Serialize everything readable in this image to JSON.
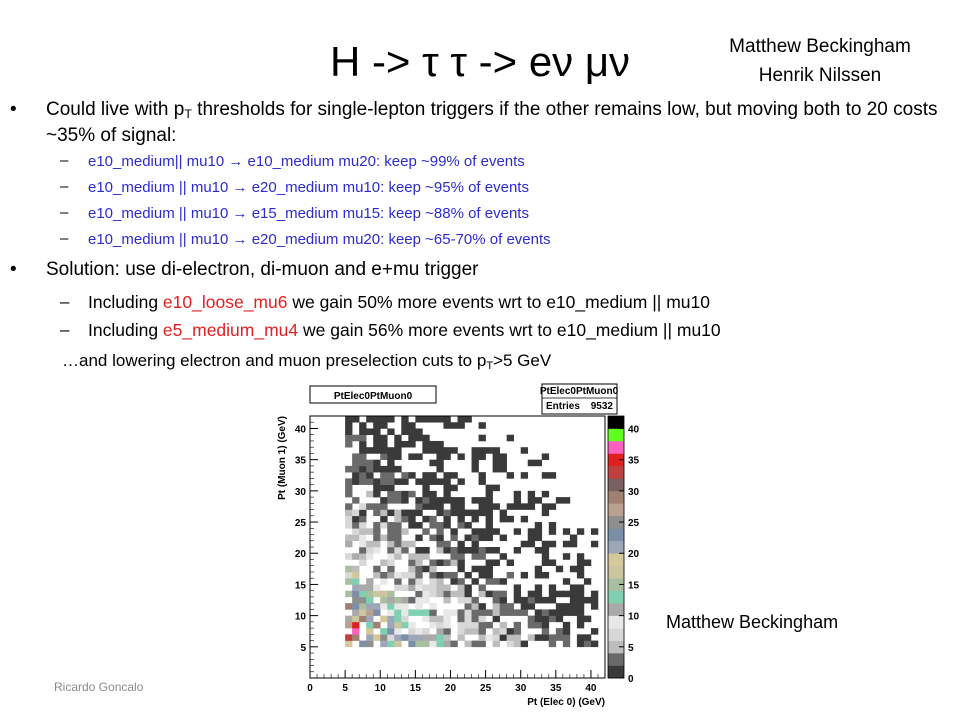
{
  "title": "H -> τ τ -> eν μν",
  "authors": [
    "Matthew Beckingham",
    "Henrik Nilssen"
  ],
  "bullets": [
    {
      "text_a": "Could live with p",
      "sub": "T",
      "text_b": " thresholds for single-lepton triggers if the other remains low, but moving both to 20 costs ~35% of signal:",
      "items": [
        "e10_medium|| mu10 → e10_medium mu20: keep ~99% of events",
        "e10_medium || mu10 → e20_medium mu10: keep ~95% of events",
        "e10_medium || mu10 → e15_medium mu15: keep ~88% of events",
        "e10_medium || mu10 → e20_medium mu20: keep ~65-70% of events"
      ]
    },
    {
      "text": "Solution: use di-electron, di-muon and e+mu trigger",
      "items": [
        {
          "pre": "Including ",
          "hl": "e10_loose_mu6",
          "post": " we gain 50% more events wrt to e10_medium || mu10"
        },
        {
          "pre": "Including  ",
          "hl": "e5_medium_mu4",
          "post": " we gain 56% more events wrt to e10_medium || mu10"
        }
      ]
    }
  ],
  "note_a": "…and lowering electron and muon preselection cuts to p",
  "note_sub": "T",
  "note_b": ">5 GeV",
  "footer": "Ricardo Goncalo",
  "credit": "Matthew Beckingham",
  "colors": {
    "text_blue": "#2b2bd0",
    "highlight_red": "#e02020"
  },
  "chart_data": {
    "type": "heatmap",
    "title": "PtElec0PtMuon0",
    "stats_box": {
      "name": "PtElec0PtMuon0",
      "entries_label": "Entries",
      "entries": "9532"
    },
    "xlabel": "Pt (Elec 0) (GeV)",
    "ylabel": "Pt (Muon 1) (GeV)",
    "xlim": [
      0,
      42
    ],
    "ylim": [
      0,
      42
    ],
    "x_ticks": [
      0,
      5,
      10,
      15,
      20,
      25,
      30,
      35,
      40
    ],
    "y_ticks": [
      5,
      10,
      15,
      20,
      25,
      30,
      35,
      40
    ],
    "z_ticks": [
      0,
      5,
      10,
      15,
      20,
      25,
      30,
      35,
      40
    ],
    "zlim": [
      0,
      42
    ],
    "bin_width": 1,
    "note": "Dense 2D histogram of electron pT vs muon pT; counts are highest at low pT (lower-left) and fall off toward high pT; bins start at 5 GeV."
  }
}
